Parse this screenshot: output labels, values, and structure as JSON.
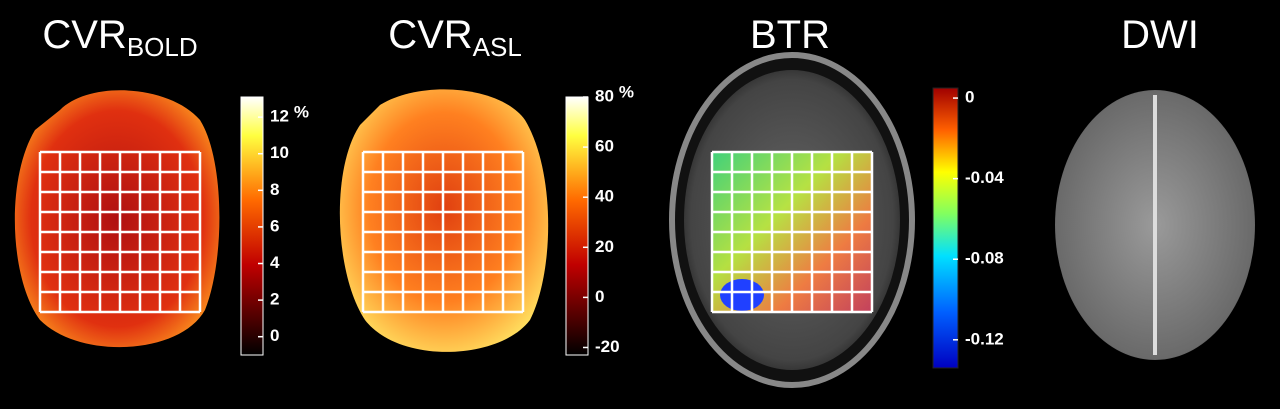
{
  "panels": [
    {
      "title": "CVR",
      "subscript": "BOLD"
    },
    {
      "title": "CVR",
      "subscript": "ASL"
    },
    {
      "title": "BTR"
    },
    {
      "title": "DWI"
    }
  ],
  "colorbars": [
    {
      "ticks": [
        12,
        10,
        8,
        6,
        4,
        2,
        0
      ],
      "unit": "%",
      "range": [
        -1,
        13.1
      ]
    },
    {
      "ticks": [
        80,
        60,
        40,
        20,
        0,
        -20
      ],
      "unit": "%",
      "range": [
        -23,
        80
      ]
    },
    {
      "ticks": [
        0,
        -0.04,
        -0.08,
        -0.12
      ],
      "range": [
        -0.134,
        0.005
      ]
    }
  ]
}
